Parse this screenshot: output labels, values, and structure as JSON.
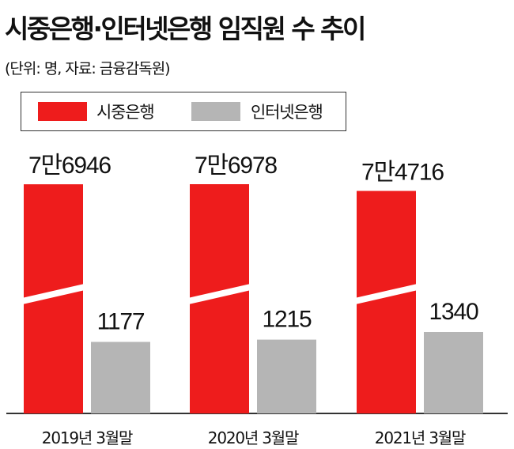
{
  "title": "시중은행·인터넷은행 임직원 수 추이",
  "subtitle": "(단위: 명, 자료: 금융감독원)",
  "colors": {
    "commercial": "#ee1c1c",
    "internet": "#b5b5b5",
    "axis": "#333333"
  },
  "chart_data": {
    "type": "bar",
    "title": "시중은행·인터넷은행 임직원 수 추이",
    "subtitle": "(단위: 명, 자료: 금융감독원)",
    "categories": [
      "2019년 3월말",
      "2020년 3월말",
      "2021년 3월말"
    ],
    "series": [
      {
        "name": "시중은행",
        "values": [
          76946,
          76978,
          74716
        ],
        "labels": [
          "7만6946",
          "7만6978",
          "7만4716"
        ]
      },
      {
        "name": "인터넷은행",
        "values": [
          1177,
          1215,
          1340
        ],
        "labels": [
          "1177",
          "1215",
          "1340"
        ]
      }
    ],
    "axis_break": true,
    "legend_position": "top-left"
  }
}
